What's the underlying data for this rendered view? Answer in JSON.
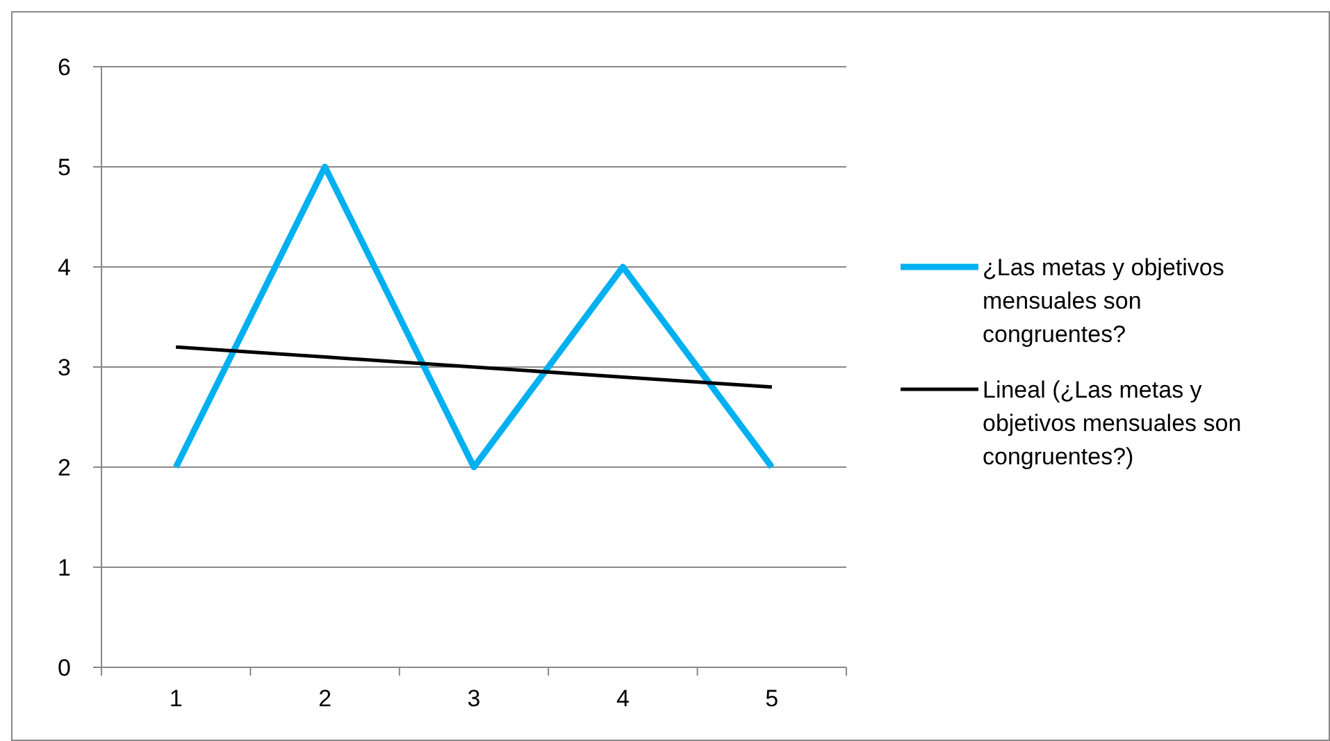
{
  "chart_data": {
    "type": "line",
    "categories": [
      "1",
      "2",
      "3",
      "4",
      "5"
    ],
    "ylim": [
      0,
      6
    ],
    "yticks": [
      0,
      1,
      2,
      3,
      4,
      5,
      6
    ],
    "grid": "y",
    "legend": "right",
    "marker": "none",
    "series": [
      {
        "name": "¿Las metas y objetivos mensuales son congruentes?",
        "color": "#00b0f0",
        "values": [
          2,
          5,
          2,
          4,
          2
        ]
      },
      {
        "name": "Lineal (¿Las metas y objetivos mensuales son congruentes?)",
        "color": "#000000",
        "values": [
          3.2,
          3.1,
          3.0,
          2.9,
          2.8
        ]
      }
    ]
  }
}
